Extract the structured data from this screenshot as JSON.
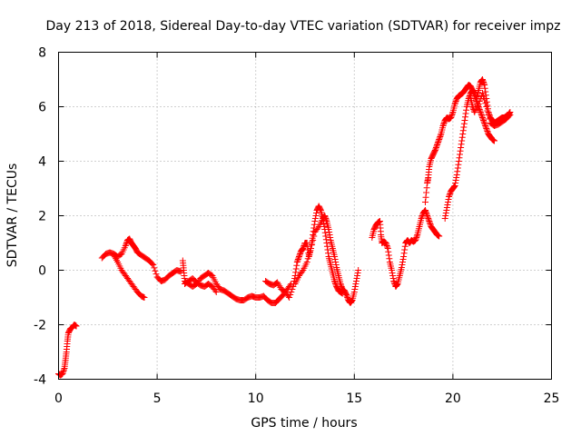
{
  "chart_data": {
    "type": "scatter",
    "title": "Day 213 of 2018, Sidereal Day-to-day VTEC variation (SDTVAR) for receiver impz",
    "xlabel": "GPS time / hours",
    "ylabel": "SDTVAR / TECUs",
    "xlim": [
      0,
      25
    ],
    "ylim": [
      -4,
      8
    ],
    "xticks": [
      "0",
      "5",
      "10",
      "15",
      "20",
      "25"
    ],
    "yticks": [
      "-4",
      "-2",
      "0",
      "2",
      "4",
      "6",
      "8"
    ],
    "grid": true,
    "marker": "plus",
    "series_color": "#ff0000",
    "series": [
      {
        "points": [
          [
            0.0,
            -3.8
          ],
          [
            0.1,
            -3.85
          ],
          [
            0.2,
            -3.8
          ],
          [
            0.3,
            -3.6
          ],
          [
            0.35,
            -3.3
          ],
          [
            0.4,
            -3.0
          ],
          [
            0.45,
            -2.6
          ],
          [
            0.5,
            -2.3
          ],
          [
            0.6,
            -2.15
          ],
          [
            0.7,
            -2.1
          ],
          [
            0.8,
            -2.0
          ],
          [
            0.9,
            -2.05
          ],
          [
            2.2,
            0.45
          ],
          [
            2.4,
            0.6
          ],
          [
            2.6,
            0.65
          ],
          [
            2.8,
            0.6
          ],
          [
            3.0,
            0.5
          ],
          [
            3.2,
            0.6
          ],
          [
            3.4,
            0.9
          ],
          [
            3.5,
            1.1
          ],
          [
            3.6,
            1.15
          ],
          [
            3.7,
            1.0
          ],
          [
            3.8,
            0.9
          ],
          [
            3.9,
            0.8
          ],
          [
            4.0,
            0.65
          ],
          [
            4.2,
            0.55
          ],
          [
            4.4,
            0.45
          ],
          [
            4.6,
            0.35
          ],
          [
            4.8,
            0.2
          ],
          [
            5.0,
            -0.25
          ],
          [
            5.2,
            -0.4
          ],
          [
            5.4,
            -0.35
          ],
          [
            5.6,
            -0.2
          ],
          [
            5.8,
            -0.1
          ],
          [
            6.0,
            0.0
          ],
          [
            6.2,
            -0.05
          ],
          [
            2.8,
            0.55
          ],
          [
            3.0,
            0.3
          ],
          [
            3.2,
            0.0
          ],
          [
            3.4,
            -0.2
          ],
          [
            3.6,
            -0.4
          ],
          [
            3.8,
            -0.6
          ],
          [
            4.0,
            -0.8
          ],
          [
            4.2,
            -0.95
          ],
          [
            4.35,
            -1.0
          ],
          [
            6.3,
            0.35
          ],
          [
            6.35,
            0.0
          ],
          [
            6.4,
            -0.4
          ],
          [
            6.6,
            -0.5
          ],
          [
            6.8,
            -0.6
          ],
          [
            7.0,
            -0.5
          ],
          [
            7.2,
            -0.3
          ],
          [
            7.4,
            -0.2
          ],
          [
            7.6,
            -0.1
          ],
          [
            7.8,
            -0.2
          ],
          [
            8.0,
            -0.5
          ],
          [
            8.2,
            -0.7
          ],
          [
            8.4,
            -0.75
          ],
          [
            8.6,
            -0.85
          ],
          [
            8.8,
            -0.95
          ],
          [
            9.0,
            -1.05
          ],
          [
            9.2,
            -1.1
          ],
          [
            9.4,
            -1.1
          ],
          [
            9.6,
            -1.0
          ],
          [
            9.8,
            -0.95
          ],
          [
            10.0,
            -1.0
          ],
          [
            10.2,
            -1.0
          ],
          [
            10.4,
            -0.95
          ],
          [
            10.6,
            -1.1
          ],
          [
            10.8,
            -1.2
          ],
          [
            11.0,
            -1.2
          ],
          [
            11.2,
            -1.05
          ],
          [
            11.4,
            -0.9
          ],
          [
            11.6,
            -0.7
          ],
          [
            11.8,
            -0.5
          ],
          [
            6.4,
            -0.5
          ],
          [
            6.6,
            -0.4
          ],
          [
            6.8,
            -0.3
          ],
          [
            7.0,
            -0.45
          ],
          [
            7.2,
            -0.55
          ],
          [
            7.4,
            -0.6
          ],
          [
            7.6,
            -0.5
          ],
          [
            7.8,
            -0.6
          ],
          [
            8.0,
            -0.8
          ],
          [
            10.5,
            -0.4
          ],
          [
            10.7,
            -0.5
          ],
          [
            10.9,
            -0.55
          ],
          [
            11.1,
            -0.45
          ],
          [
            11.3,
            -0.7
          ],
          [
            11.5,
            -0.8
          ],
          [
            11.7,
            -1.0
          ],
          [
            11.9,
            -0.6
          ],
          [
            12.0,
            -0.2
          ],
          [
            12.1,
            0.3
          ],
          [
            12.2,
            0.5
          ],
          [
            12.3,
            0.7
          ],
          [
            12.4,
            0.8
          ],
          [
            12.5,
            1.0
          ],
          [
            12.6,
            1.0
          ],
          [
            12.7,
            0.5
          ],
          [
            12.8,
            0.8
          ],
          [
            12.9,
            1.3
          ],
          [
            13.0,
            1.8
          ],
          [
            13.1,
            2.2
          ],
          [
            13.2,
            2.35
          ],
          [
            13.3,
            2.2
          ],
          [
            13.4,
            1.9
          ],
          [
            13.5,
            1.5
          ],
          [
            13.6,
            1.0
          ],
          [
            13.7,
            0.5
          ],
          [
            13.8,
            0.2
          ],
          [
            13.9,
            -0.1
          ],
          [
            14.0,
            -0.4
          ],
          [
            14.1,
            -0.6
          ],
          [
            14.2,
            -0.75
          ],
          [
            14.3,
            -0.8
          ],
          [
            14.4,
            -0.85
          ],
          [
            12.0,
            -0.5
          ],
          [
            12.2,
            -0.2
          ],
          [
            12.4,
            0.0
          ],
          [
            12.6,
            0.3
          ],
          [
            12.8,
            0.8
          ],
          [
            13.0,
            1.4
          ],
          [
            13.2,
            1.6
          ],
          [
            13.4,
            1.9
          ],
          [
            13.5,
            2.0
          ],
          [
            13.6,
            1.8
          ],
          [
            13.7,
            1.5
          ],
          [
            13.8,
            1.1
          ],
          [
            13.9,
            0.8
          ],
          [
            14.0,
            0.5
          ],
          [
            14.1,
            0.1
          ],
          [
            14.2,
            -0.2
          ],
          [
            14.3,
            -0.5
          ],
          [
            14.4,
            -0.7
          ],
          [
            14.5,
            -0.75
          ],
          [
            14.6,
            -0.9
          ],
          [
            14.7,
            -1.1
          ],
          [
            14.8,
            -1.2
          ],
          [
            14.9,
            -1.1
          ],
          [
            15.0,
            -0.8
          ],
          [
            15.1,
            -0.4
          ],
          [
            15.2,
            0.0
          ],
          [
            15.9,
            1.2
          ],
          [
            16.0,
            1.5
          ],
          [
            16.1,
            1.65
          ],
          [
            16.2,
            1.75
          ],
          [
            16.3,
            1.8
          ],
          [
            16.35,
            1.3
          ],
          [
            16.4,
            1.0
          ],
          [
            16.5,
            1.05
          ],
          [
            16.6,
            1.0
          ],
          [
            16.7,
            0.8
          ],
          [
            16.8,
            0.3
          ],
          [
            16.9,
            0.0
          ],
          [
            17.0,
            -0.4
          ],
          [
            17.1,
            -0.6
          ],
          [
            17.2,
            -0.5
          ],
          [
            17.3,
            -0.2
          ],
          [
            17.4,
            0.1
          ],
          [
            17.5,
            0.5
          ],
          [
            17.6,
            1.0
          ],
          [
            17.7,
            1.1
          ],
          [
            17.8,
            1.0
          ],
          [
            17.9,
            1.1
          ],
          [
            18.0,
            1.05
          ],
          [
            18.1,
            1.1
          ],
          [
            18.2,
            1.3
          ],
          [
            18.3,
            1.6
          ],
          [
            18.4,
            1.9
          ],
          [
            18.5,
            2.1
          ],
          [
            18.6,
            2.2
          ],
          [
            18.7,
            2.0
          ],
          [
            18.8,
            1.8
          ],
          [
            18.9,
            1.6
          ],
          [
            19.0,
            1.5
          ],
          [
            19.1,
            1.4
          ],
          [
            19.2,
            1.3
          ],
          [
            19.3,
            1.25
          ],
          [
            18.6,
            2.5
          ],
          [
            18.7,
            3.2
          ],
          [
            18.75,
            3.4
          ],
          [
            18.8,
            3.8
          ],
          [
            18.9,
            4.1
          ],
          [
            19.0,
            4.25
          ],
          [
            19.1,
            4.4
          ],
          [
            19.2,
            4.6
          ],
          [
            19.3,
            4.8
          ],
          [
            19.4,
            5.0
          ],
          [
            19.5,
            5.3
          ],
          [
            19.6,
            5.5
          ],
          [
            19.7,
            5.6
          ],
          [
            19.8,
            5.55
          ],
          [
            19.9,
            5.6
          ],
          [
            20.0,
            5.8
          ],
          [
            20.1,
            6.1
          ],
          [
            20.2,
            6.3
          ],
          [
            20.3,
            6.4
          ],
          [
            20.4,
            6.45
          ],
          [
            20.5,
            6.5
          ],
          [
            20.6,
            6.6
          ],
          [
            20.7,
            6.7
          ],
          [
            20.8,
            6.8
          ],
          [
            20.9,
            6.75
          ],
          [
            21.0,
            6.6
          ],
          [
            21.1,
            6.4
          ],
          [
            21.2,
            6.2
          ],
          [
            21.3,
            6.0
          ],
          [
            21.4,
            5.8
          ],
          [
            21.5,
            5.6
          ],
          [
            21.6,
            5.4
          ],
          [
            21.7,
            5.2
          ],
          [
            21.8,
            5.0
          ],
          [
            21.9,
            4.9
          ],
          [
            22.0,
            4.8
          ],
          [
            22.1,
            4.75
          ],
          [
            19.6,
            1.9
          ],
          [
            19.7,
            2.3
          ],
          [
            19.8,
            2.7
          ],
          [
            19.9,
            2.9
          ],
          [
            20.0,
            3.0
          ],
          [
            20.1,
            3.1
          ],
          [
            20.2,
            3.5
          ],
          [
            20.3,
            4.0
          ],
          [
            20.4,
            4.5
          ],
          [
            20.5,
            5.0
          ],
          [
            20.6,
            5.5
          ],
          [
            20.7,
            6.0
          ],
          [
            20.8,
            6.3
          ],
          [
            20.9,
            6.5
          ],
          [
            21.0,
            6.6
          ],
          [
            21.1,
            6.5
          ],
          [
            21.2,
            6.3
          ],
          [
            21.3,
            6.6
          ],
          [
            21.4,
            6.9
          ],
          [
            21.5,
            7.0
          ],
          [
            21.6,
            6.8
          ],
          [
            21.7,
            6.3
          ],
          [
            21.8,
            5.8
          ],
          [
            21.9,
            5.6
          ],
          [
            22.0,
            5.5
          ],
          [
            22.1,
            5.4
          ],
          [
            22.2,
            5.45
          ],
          [
            22.3,
            5.5
          ],
          [
            22.4,
            5.55
          ],
          [
            22.5,
            5.6
          ],
          [
            22.6,
            5.6
          ],
          [
            22.7,
            5.65
          ],
          [
            22.8,
            5.7
          ],
          [
            22.9,
            5.8
          ],
          [
            20.9,
            6.3
          ],
          [
            21.0,
            6.0
          ],
          [
            21.1,
            5.8
          ],
          [
            21.3,
            6.1
          ],
          [
            21.5,
            6.5
          ],
          [
            21.7,
            6.0
          ],
          [
            21.9,
            5.4
          ],
          [
            22.1,
            5.3
          ],
          [
            22.3,
            5.35
          ],
          [
            22.5,
            5.45
          ],
          [
            22.7,
            5.55
          ],
          [
            22.9,
            5.7
          ]
        ]
      }
    ]
  }
}
